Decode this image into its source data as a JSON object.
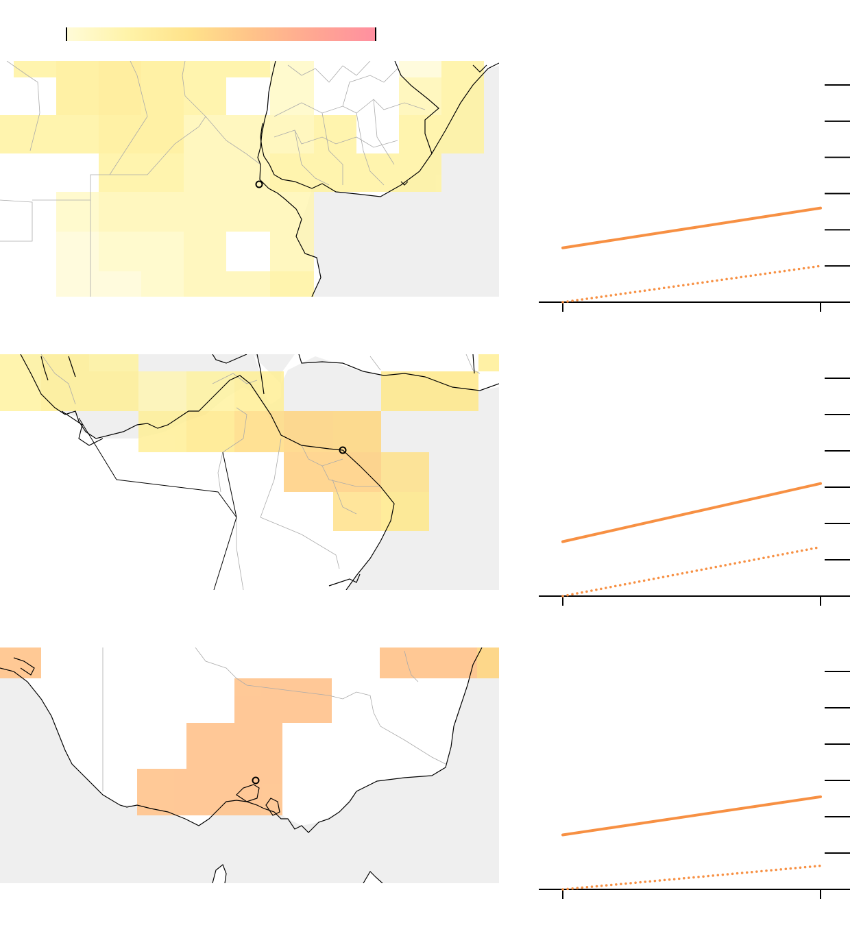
{
  "colorbar": {
    "stops": [
      "#fffbd8",
      "#fff3a8",
      "#ffe28a",
      "#ffc389",
      "#ffa792",
      "#ff8fa0"
    ]
  },
  "colors": {
    "ocean": "#efefef",
    "land": "#ffffff",
    "coast": "#000000",
    "border": "#aaaaaa",
    "line": "#f79043"
  },
  "chart_data": [
    {
      "type": "line",
      "series": [
        {
          "style": "solid",
          "values": [
            1.5,
            2.6
          ]
        },
        {
          "style": "dotted",
          "values": [
            0.0,
            1.0
          ]
        }
      ],
      "ylim": [
        0,
        6
      ],
      "yticks": [
        1,
        2,
        3,
        4,
        5,
        6
      ],
      "xticks": 2,
      "grid": false
    },
    {
      "type": "line",
      "series": [
        {
          "style": "solid",
          "values": [
            1.5,
            3.1
          ]
        },
        {
          "style": "dotted",
          "values": [
            0.0,
            1.35
          ]
        }
      ],
      "ylim": [
        0,
        6
      ],
      "yticks": [
        1,
        2,
        3,
        4,
        5,
        6
      ],
      "xticks": 2,
      "grid": false
    },
    {
      "type": "line",
      "series": [
        {
          "style": "solid",
          "values": [
            1.5,
            2.55
          ]
        },
        {
          "style": "dotted",
          "values": [
            0.0,
            0.65
          ]
        }
      ],
      "ylim": [
        0,
        6
      ],
      "yticks": [
        1,
        2,
        3,
        4,
        5,
        6
      ],
      "xticks": 2,
      "grid": false
    }
  ]
}
